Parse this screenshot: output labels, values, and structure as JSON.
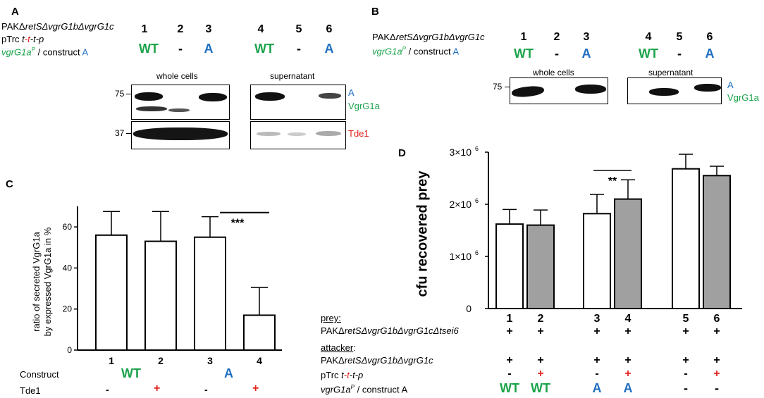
{
  "panelA": {
    "letter": "A",
    "strain_prefix": "PAKΔ",
    "strain_italic": "retSΔvgrG1bΔvgrG1c",
    "ptrc_prefix": "pTrc ",
    "ptrc_t1": "t",
    "ptrc_dash1": "-",
    "ptrc_t2": "t",
    "ptrc_dash2": "-",
    "ptrc_t3": "t",
    "ptrc_dash3": "-",
    "ptrc_p": "p",
    "vgrg_main": "vgrG1a",
    "vgrg_sup": "P",
    "vgrg_mid": " / construct ",
    "vgrg_A": "A",
    "lanes": [
      "1",
      "2",
      "3",
      "4",
      "5",
      "6"
    ],
    "lane_markers": [
      "WT",
      "-",
      "A",
      "WT",
      "-",
      "A"
    ],
    "whole_cells": "whole cells",
    "supernatant": "supernatant",
    "mw_75": "75",
    "mw_37": "37",
    "label_A": "A",
    "label_vgrg1a": "VgrG1a",
    "label_tde1": "Tde1"
  },
  "panelB": {
    "letter": "B",
    "strain_prefix": "PAKΔ",
    "strain_italic": "retSΔvgrG1bΔvgrG1c",
    "vgrg_main": "vgrG1a",
    "vgrg_sup": "P",
    "vgrg_mid": " / construct ",
    "vgrg_A": "A",
    "lanes": [
      "1",
      "2",
      "3",
      "4",
      "5",
      "6"
    ],
    "lane_markers": [
      "WT",
      "-",
      "A",
      "WT",
      "-",
      "A"
    ],
    "whole_cells": "whole cells",
    "supernatant": "supernatant",
    "mw_75": "75",
    "label_A": "A",
    "label_vgrg1a": "VgrG1a"
  },
  "panelC": {
    "letter": "C",
    "ylabel_line1": "ratio of secreted VgrG1a",
    "ylabel_line2": "by expressed VgrG1a in %",
    "row_construct": "Construct",
    "row_tde1": "Tde1",
    "construct_wt": "WT",
    "construct_a": "A",
    "tde1_marks": [
      "-",
      "+",
      "-",
      "+"
    ],
    "significance": "***"
  },
  "panelD": {
    "letter": "D",
    "ylabel": "cfu recovered prey",
    "significance": "**",
    "prey_label": "prey:",
    "prey_strain_prefix": "PAKΔ",
    "prey_strain_italic": "retSΔvgrG1bΔvgrG1cΔtsei6",
    "attacker_label": "attacker",
    "attacker_colon": ":",
    "attacker_strain_prefix": "PAKΔ",
    "attacker_strain_italic": "retSΔvgrG1bΔvgrG1c",
    "ptrc_prefix": "pTrc ",
    "ptrc_t1": "t",
    "ptrc_dash1": "-",
    "ptrc_t2": "t",
    "ptrc_dash2": "-",
    "ptrc_t3": "t",
    "ptrc_dash3": "-",
    "ptrc_p": "p",
    "vgrg_main": "vgrG1a",
    "vgrg_sup": "P",
    "vgrg_tail": " / construct A",
    "prey_marks": [
      "+",
      "+",
      "+",
      "+",
      "+",
      "+"
    ],
    "attacker_marks": [
      "+",
      "+",
      "+",
      "+",
      "+",
      "+"
    ],
    "ptrc_marks": [
      "-",
      "+",
      "-",
      "+",
      "-",
      "+"
    ],
    "construct_marks": [
      "WT",
      "WT",
      "A",
      "A",
      "-",
      "-"
    ]
  },
  "colors": {
    "green": "#1aa34a",
    "blue": "#1f6fc0",
    "red": "#e0201b",
    "grey_bar": "#a0a0a0"
  },
  "chart_data": [
    {
      "type": "bar",
      "id": "panelC",
      "categories": [
        "1",
        "2",
        "3",
        "4"
      ],
      "values": [
        56,
        53,
        55,
        17
      ],
      "errors": [
        11.5,
        14.5,
        10,
        13.5
      ],
      "ylim": [
        0,
        70
      ],
      "yticks": [
        "0",
        "20",
        "40",
        "60"
      ],
      "ytick_values": [
        0,
        20,
        40,
        60
      ],
      "grid": false
    },
    {
      "type": "bar",
      "id": "panelD",
      "categories": [
        "1",
        "2",
        "3",
        "4",
        "5",
        "6"
      ],
      "values": [
        1.62,
        1.6,
        1.82,
        2.1,
        2.68,
        2.55
      ],
      "errors": [
        0.28,
        0.29,
        0.37,
        0.37,
        0.28,
        0.18
      ],
      "fill": [
        "white",
        "grey",
        "white",
        "grey",
        "white",
        "grey"
      ],
      "ylim": [
        0,
        3
      ],
      "yticks": [
        "0",
        "1×10",
        "2×10",
        "3×10"
      ],
      "ytick_sup": [
        "",
        "6",
        "6",
        "6"
      ],
      "ytick_values": [
        0,
        1,
        2,
        3
      ],
      "grid": false
    }
  ]
}
